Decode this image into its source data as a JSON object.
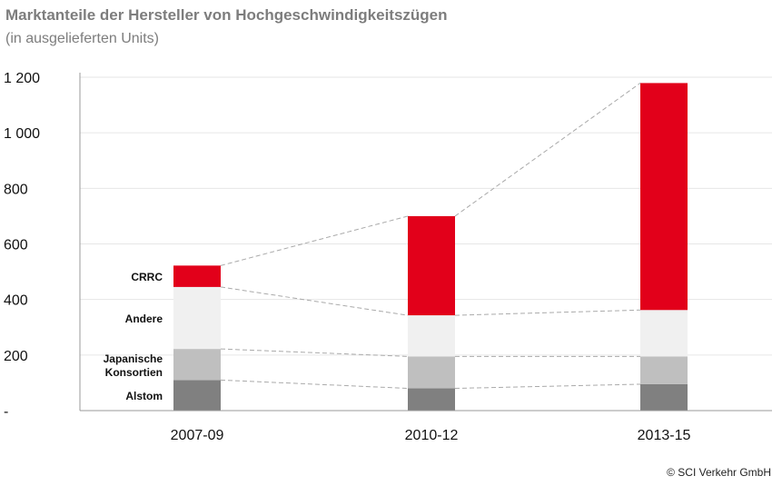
{
  "title": "Marktanteile der Hersteller von Hochgeschwindigkeitszügen",
  "subtitle": "(in ausgelieferten Units)",
  "copyright": "© SCI Verkehr GmbH",
  "chart_data": {
    "type": "bar",
    "stacked": true,
    "categories": [
      "2007-09",
      "2010-12",
      "2013-15"
    ],
    "series": [
      {
        "name": "Alstom",
        "color": "#808080",
        "values": [
          110,
          80,
          95
        ]
      },
      {
        "name": "Japanische Konsortien",
        "color": "#bfbfbf",
        "values": [
          112,
          115,
          100
        ]
      },
      {
        "name": "Andere",
        "color": "#f0f0f0",
        "values": [
          223,
          148,
          167
        ]
      },
      {
        "name": "CRRC",
        "color": "#e2001a",
        "values": [
          77,
          357,
          817
        ]
      }
    ],
    "ylim": [
      0,
      1200
    ],
    "yticks": [
      0,
      200,
      400,
      600,
      800,
      1000,
      1200
    ],
    "ytick_labels": [
      "-",
      "200",
      "400",
      "600",
      "800",
      "1 000",
      "1 200"
    ],
    "grid": true,
    "legend": "labels beside first bar"
  }
}
